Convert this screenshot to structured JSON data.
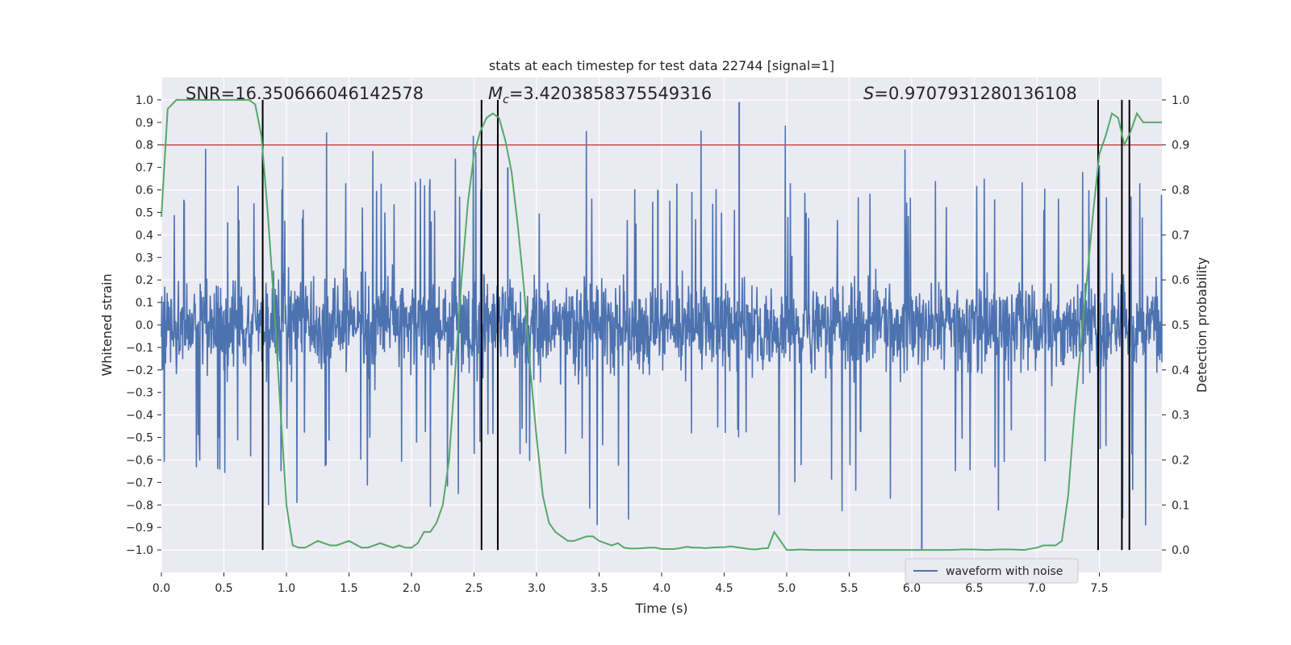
{
  "chart_data": {
    "type": "line",
    "title": "stats at each timestep for test data 22744 [signal=1]",
    "xlabel": "Time (s)",
    "ylabel_left": "Whitened strain",
    "ylabel_right": "Detection probability",
    "xlim": [
      0,
      8
    ],
    "ylim_left": [
      -1.1,
      1.1
    ],
    "ylim_right": [
      -0.05,
      1.05
    ],
    "x_ticks": [
      0.0,
      0.5,
      1.0,
      1.5,
      2.0,
      2.5,
      3.0,
      3.5,
      4.0,
      4.5,
      5.0,
      5.5,
      6.0,
      6.5,
      7.0,
      7.5
    ],
    "x_tick_labels": [
      "0.0",
      "0.5",
      "1.0",
      "1.5",
      "2.0",
      "2.5",
      "3.0",
      "3.5",
      "4.0",
      "4.5",
      "5.0",
      "5.5",
      "6.0",
      "6.5",
      "7.0",
      "7.5"
    ],
    "y_left_ticks": [
      1.0,
      0.9,
      0.8,
      0.7,
      0.6,
      0.5,
      0.4,
      0.3,
      0.2,
      0.1,
      0.0,
      -0.1,
      -0.2,
      -0.3,
      -0.4,
      -0.5,
      -0.6,
      -0.7,
      -0.8,
      -0.9,
      -1.0
    ],
    "y_left_tick_labels": [
      "1.0",
      "0.9",
      "0.8",
      "0.7",
      "0.6",
      "0.5",
      "0.4",
      "0.3",
      "0.2",
      "0.1",
      "0.0",
      "−0.1",
      "−0.2",
      "−0.3",
      "−0.4",
      "−0.5",
      "−0.6",
      "−0.7",
      "−0.8",
      "−0.9",
      "−1.0"
    ],
    "y_right_ticks": [
      1.0,
      0.9,
      0.8,
      0.7,
      0.6,
      0.5,
      0.4,
      0.3,
      0.2,
      0.1,
      0.0
    ],
    "y_right_tick_labels": [
      "1.0",
      "0.9",
      "0.8",
      "0.7",
      "0.6",
      "0.5",
      "0.4",
      "0.3",
      "0.2",
      "0.1",
      "0.0"
    ],
    "grid": true,
    "legend_position": "lower-right",
    "annotations": {
      "snr": "SNR=16.350666046142578",
      "mc_symbol": "M",
      "mc_sub": "c",
      "mc_value": "=3.4203858375549316",
      "s_symbol": "S",
      "s_value": "=0.9707931280136108"
    },
    "threshold": {
      "value": 0.9,
      "axis": "right",
      "color": "#c44e52"
    },
    "vertical_lines": [
      0.81,
      2.56,
      2.69,
      7.49,
      7.68,
      7.74
    ],
    "vertical_line_ylim": [
      -1.0,
      1.0
    ],
    "series": [
      {
        "name": "waveform with noise",
        "axis": "left",
        "color": "#4c72b0",
        "style": "dense-noise",
        "typical_envelope": [
          -0.45,
          0.45
        ],
        "max_spike": 0.99,
        "min_spike": -1.0
      },
      {
        "axis": "right",
        "color": "#55a868",
        "x": [
          0.0,
          0.05,
          0.12,
          0.2,
          0.3,
          0.4,
          0.5,
          0.6,
          0.7,
          0.75,
          0.8,
          0.85,
          0.9,
          0.95,
          1.0,
          1.05,
          1.1,
          1.15,
          1.25,
          1.35,
          1.4,
          1.5,
          1.6,
          1.65,
          1.7,
          1.75,
          1.8,
          1.85,
          1.9,
          1.95,
          2.0,
          2.05,
          2.1,
          2.15,
          2.2,
          2.25,
          2.3,
          2.35,
          2.4,
          2.45,
          2.5,
          2.55,
          2.6,
          2.65,
          2.7,
          2.75,
          2.8,
          2.85,
          2.9,
          2.95,
          3.0,
          3.05,
          3.1,
          3.15,
          3.2,
          3.25,
          3.3,
          3.35,
          3.4,
          3.45,
          3.5,
          3.55,
          3.6,
          3.65,
          3.7,
          3.75,
          3.8,
          3.85,
          3.9,
          3.95,
          4.0,
          4.05,
          4.1,
          4.15,
          4.2,
          4.25,
          4.3,
          4.35,
          4.4,
          4.45,
          4.5,
          4.55,
          4.6,
          4.65,
          4.7,
          4.75,
          4.8,
          4.85,
          4.9,
          4.95,
          5.0,
          5.05,
          5.1,
          5.2,
          5.3,
          5.4,
          5.5,
          5.6,
          5.7,
          5.8,
          5.9,
          6.0,
          6.1,
          6.2,
          6.3,
          6.4,
          6.5,
          6.6,
          6.7,
          6.8,
          6.9,
          7.0,
          7.05,
          7.1,
          7.15,
          7.2,
          7.25,
          7.3,
          7.35,
          7.4,
          7.45,
          7.5,
          7.55,
          7.6,
          7.65,
          7.7,
          7.75,
          7.8,
          7.85,
          7.9,
          7.95,
          8.0
        ],
        "y": [
          0.74,
          0.98,
          1.0,
          1.0,
          1.0,
          1.0,
          1.0,
          1.0,
          1.0,
          0.99,
          0.92,
          0.75,
          0.55,
          0.32,
          0.1,
          0.01,
          0.005,
          0.005,
          0.02,
          0.01,
          0.01,
          0.02,
          0.005,
          0.005,
          0.01,
          0.015,
          0.01,
          0.005,
          0.01,
          0.005,
          0.005,
          0.015,
          0.04,
          0.04,
          0.06,
          0.1,
          0.2,
          0.4,
          0.6,
          0.77,
          0.88,
          0.93,
          0.96,
          0.97,
          0.96,
          0.91,
          0.84,
          0.72,
          0.58,
          0.4,
          0.25,
          0.12,
          0.06,
          0.04,
          0.03,
          0.02,
          0.02,
          0.025,
          0.03,
          0.03,
          0.02,
          0.015,
          0.01,
          0.015,
          0.005,
          0.003,
          0.003,
          0.004,
          0.005,
          0.005,
          0.002,
          0.002,
          0.002,
          0.004,
          0.007,
          0.005,
          0.005,
          0.004,
          0.005,
          0.006,
          0.006,
          0.008,
          0.006,
          0.004,
          0.002,
          0.001,
          0.003,
          0.004,
          0.04,
          0.02,
          0.0,
          0.0,
          0.001,
          0.0,
          0.0,
          0.0,
          0.0,
          0.0,
          0.0,
          0.0,
          0.0,
          0.0,
          0.0,
          0.0,
          0.0,
          0.001,
          0.001,
          0.0,
          0.001,
          0.001,
          0.0,
          0.005,
          0.01,
          0.01,
          0.01,
          0.02,
          0.12,
          0.3,
          0.45,
          0.6,
          0.75,
          0.88,
          0.92,
          0.97,
          0.96,
          0.9,
          0.93,
          0.97,
          0.95,
          0.95,
          0.95,
          0.95
        ]
      }
    ]
  }
}
